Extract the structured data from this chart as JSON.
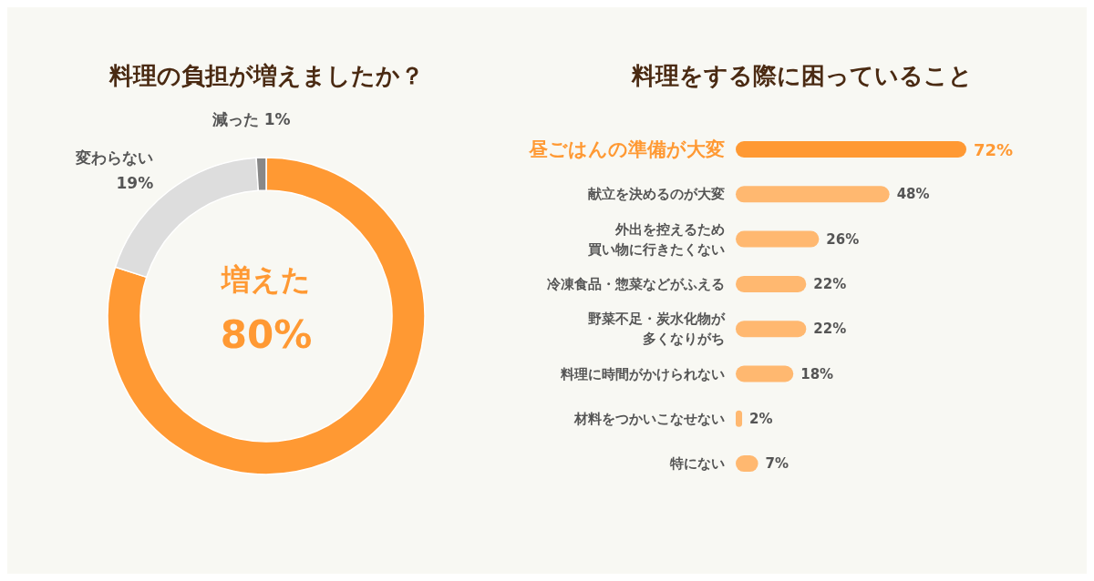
{
  "chart_data": [
    {
      "type": "donut",
      "title": "料理の負担が増えましたか？",
      "categories": [
        "増えた",
        "変わらない",
        "減った"
      ],
      "values": [
        80,
        19,
        1
      ],
      "colors": [
        "#ff9933",
        "#dddddd",
        "#888888"
      ],
      "value_labels": [
        "80%",
        "19%",
        "1%"
      ]
    },
    {
      "type": "bar",
      "orientation": "horizontal",
      "title": "料理をする際に困っていること",
      "categories": [
        "昼ごはんの準備が大変",
        "献立を決めるのが大変",
        "外出を控えるため買い物に行きたくない",
        "冷凍食品・惣菜などがふえる",
        "野菜不足・炭水化物が多くなりがち",
        "料理に時間がかけられない",
        "材料をつかいこなせない",
        "特にない"
      ],
      "values": [
        72,
        48,
        26,
        22,
        22,
        18,
        2,
        7
      ],
      "colors": [
        "#ff9933",
        "#ffb870",
        "#ffb870",
        "#ffb870",
        "#ffb870",
        "#ffb870",
        "#ffb870",
        "#ffb870"
      ],
      "value_labels": [
        "72%",
        "48%",
        "26%",
        "22%",
        "22%",
        "18%",
        "2%",
        "7%"
      ]
    }
  ]
}
